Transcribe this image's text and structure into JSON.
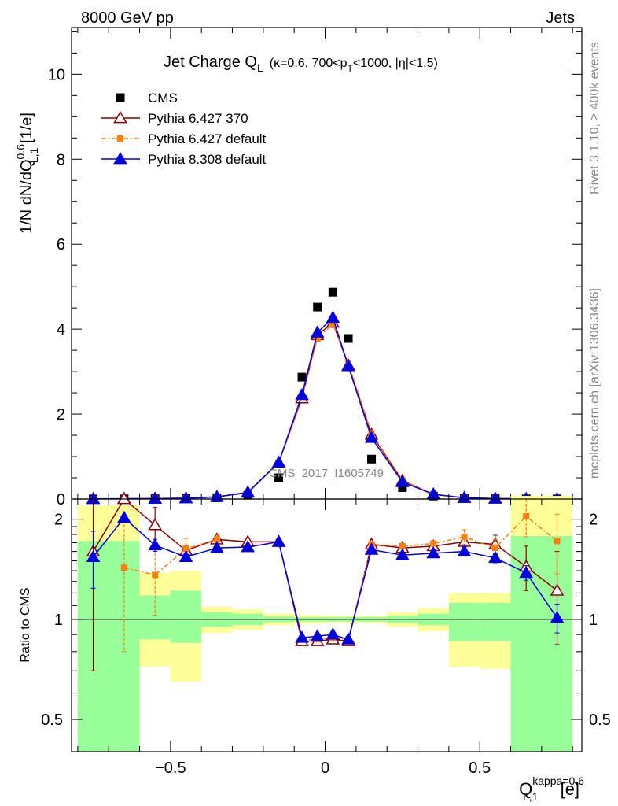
{
  "header": {
    "left": "8000 GeV pp",
    "right": "Jets"
  },
  "side_labels": {
    "rivet": "Rivet 3.1.10, ≥ 400k events",
    "mcplots": "mcplots.cern.ch [arXiv:1306.3436]"
  },
  "watermark": "CMS_2017_I1605749",
  "chart_data": [
    {
      "type": "scatter",
      "panel": "main",
      "title": {
        "main": "Jet Charge Q",
        "sub": "L",
        "detail": "(κ=0.6, 700<p",
        "detail_sub": "T",
        "detail_end": "<1000, |η|<1.5)"
      },
      "ylabel": {
        "a": "1/N dN/dQ",
        "sup": "0.6",
        "sub": "L,1",
        "b": " [1/e]"
      },
      "xlim": [
        -0.82,
        0.83
      ],
      "ylim": [
        0,
        11.1
      ],
      "yticks": [
        0,
        2,
        4,
        6,
        8,
        10
      ],
      "ytick_labels": [
        "0",
        "2",
        "4",
        "6",
        "8",
        "10"
      ],
      "legend": {
        "placement": "top-left"
      },
      "x": [
        -0.75,
        -0.65,
        -0.55,
        -0.45,
        -0.35,
        -0.25,
        -0.15,
        -0.075,
        -0.025,
        0.025,
        0.075,
        0.15,
        0.25,
        0.35,
        0.45,
        0.55,
        0.65,
        0.75
      ],
      "series": [
        {
          "name": "CMS",
          "color": "#000000",
          "marker": "square",
          "values": [
            0.002,
            0.004,
            0.006,
            0.012,
            0.03,
            0.09,
            0.5,
            2.87,
            4.52,
            4.87,
            3.78,
            0.94,
            0.27,
            0.07,
            0.017,
            0.007,
            0.003,
            0.002
          ]
        },
        {
          "name": "Pythia 6.427 370",
          "color": "#8b0000",
          "marker": "open-triangle",
          "dash": "",
          "values": [
            0.003,
            0.008,
            0.012,
            0.02,
            0.05,
            0.16,
            0.86,
            2.37,
            3.86,
            4.15,
            3.15,
            1.52,
            0.43,
            0.11,
            0.03,
            0.012,
            0.005,
            0.002
          ]
        },
        {
          "name": "Pythia 6.427 default",
          "color": "#ff7f0e",
          "marker": "filled-square",
          "dash": "6,3,2,3",
          "values": [
            0.003,
            0.006,
            0.011,
            0.02,
            0.05,
            0.15,
            0.85,
            2.4,
            3.78,
            4.12,
            3.2,
            1.55,
            0.44,
            0.12,
            0.03,
            0.012,
            0.006,
            0.003
          ]
        },
        {
          "name": "Pythia 8.308 default",
          "color": "#0000dd",
          "marker": "filled-triangle",
          "dash": "",
          "values": [
            0.003,
            0.008,
            0.01,
            0.018,
            0.05,
            0.15,
            0.86,
            2.45,
            3.92,
            4.27,
            3.13,
            1.44,
            0.4,
            0.11,
            0.027,
            0.011,
            0.004,
            0.002
          ]
        }
      ]
    },
    {
      "type": "scatter",
      "panel": "ratio",
      "ylabel": "Ratio to CMS",
      "yscale": "log",
      "ylim": [
        0.4,
        2.3
      ],
      "yticks": [
        0.5,
        1,
        2
      ],
      "ytick_labels": [
        "0.5",
        "1",
        "2"
      ],
      "xlabel": {
        "a": "Q",
        "sup": "kappa=0.6",
        "sub": "L,1",
        "b": " [e]"
      },
      "xlim": [
        -0.82,
        0.83
      ],
      "xticks": [
        -0.5,
        0,
        0.5
      ],
      "xtick_labels": [
        "−0.5",
        "0",
        "0.5"
      ],
      "reference_line": 1,
      "bands": [
        {
          "x0": -0.8,
          "x1": -0.6,
          "yellow": [
            0.4,
            2.2
          ],
          "green": [
            0.4,
            1.72
          ]
        },
        {
          "x0": -0.6,
          "x1": -0.5,
          "yellow": [
            0.72,
            1.38
          ],
          "green": [
            0.87,
            1.18
          ]
        },
        {
          "x0": -0.5,
          "x1": -0.4,
          "yellow": [
            0.65,
            1.4
          ],
          "green": [
            0.85,
            1.22
          ]
        },
        {
          "x0": -0.4,
          "x1": -0.3,
          "yellow": [
            0.91,
            1.09
          ],
          "green": [
            0.95,
            1.05
          ]
        },
        {
          "x0": -0.3,
          "x1": -0.2,
          "yellow": [
            0.93,
            1.07
          ],
          "green": [
            0.96,
            1.04
          ]
        },
        {
          "x0": -0.2,
          "x1": -0.1,
          "yellow": [
            0.96,
            1.04
          ],
          "green": [
            0.98,
            1.02
          ]
        },
        {
          "x0": -0.1,
          "x1": -0.05,
          "yellow": [
            0.97,
            1.03
          ],
          "green": [
            0.985,
            1.015
          ]
        },
        {
          "x0": -0.05,
          "x1": 0.0,
          "yellow": [
            0.97,
            1.03
          ],
          "green": [
            0.985,
            1.015
          ]
        },
        {
          "x0": 0.0,
          "x1": 0.05,
          "yellow": [
            0.975,
            1.025
          ],
          "green": [
            0.985,
            1.015
          ]
        },
        {
          "x0": 0.05,
          "x1": 0.1,
          "yellow": [
            0.975,
            1.025
          ],
          "green": [
            0.985,
            1.015
          ]
        },
        {
          "x0": 0.1,
          "x1": 0.2,
          "yellow": [
            0.975,
            1.025
          ],
          "green": [
            0.985,
            1.015
          ]
        },
        {
          "x0": 0.2,
          "x1": 0.3,
          "yellow": [
            0.95,
            1.05
          ],
          "green": [
            0.975,
            1.025
          ]
        },
        {
          "x0": 0.3,
          "x1": 0.4,
          "yellow": [
            0.92,
            1.08
          ],
          "green": [
            0.96,
            1.04
          ]
        },
        {
          "x0": 0.4,
          "x1": 0.5,
          "yellow": [
            0.72,
            1.2
          ],
          "green": [
            0.86,
            1.12
          ]
        },
        {
          "x0": 0.5,
          "x1": 0.6,
          "yellow": [
            0.71,
            1.2
          ],
          "green": [
            0.86,
            1.12
          ]
        },
        {
          "x0": 0.6,
          "x1": 0.8,
          "yellow": [
            0.4,
            2.35
          ],
          "green": [
            0.4,
            1.78
          ]
        }
      ],
      "x": [
        -0.75,
        -0.65,
        -0.55,
        -0.45,
        -0.35,
        -0.25,
        -0.15,
        -0.075,
        -0.025,
        0.025,
        0.075,
        0.15,
        0.25,
        0.35,
        0.45,
        0.55,
        0.65,
        0.75
      ],
      "series": [
        {
          "name": "Pythia 6.427 370",
          "color": "#8b0000",
          "marker": "open-triangle",
          "values": [
            1.6,
            2.35,
            1.92,
            1.61,
            1.74,
            1.71,
            1.71,
            0.86,
            0.86,
            0.87,
            0.86,
            1.68,
            1.64,
            1.66,
            1.71,
            1.68,
            1.44,
            1.22
          ],
          "err_low": [
            0.9,
            0.05,
            0.25,
            0.05,
            0.04,
            0.03,
            0.02,
            0.01,
            0.01,
            0.01,
            0.01,
            0.02,
            0.02,
            0.03,
            0.08,
            0.11,
            0.22,
            0.38
          ],
          "err_high": [
            0.9,
            0.05,
            0.25,
            0.05,
            0.04,
            0.03,
            0.02,
            0.01,
            0.01,
            0.01,
            0.01,
            0.02,
            0.02,
            0.03,
            0.08,
            0.11,
            0.22,
            0.38
          ]
        },
        {
          "name": "Pythia 6.427 default",
          "color": "#ff7f0e",
          "marker": "filled-square",
          "values": [
            0.0,
            1.43,
            1.36,
            1.63,
            1.74,
            0.0,
            0.0,
            0.87,
            0.87,
            0.88,
            0.87,
            1.68,
            1.66,
            1.69,
            1.77,
            1.64,
            2.04,
            1.72
          ],
          "err_low": [
            0.0,
            0.63,
            0.33,
            0.12,
            0.05,
            0.0,
            0.0,
            0.01,
            0.01,
            0.01,
            0.01,
            0.02,
            0.02,
            0.03,
            0.09,
            0.1,
            0.27,
            0.35
          ],
          "err_high": [
            0.0,
            0.63,
            0.33,
            0.12,
            0.05,
            0.0,
            0.0,
            0.01,
            0.01,
            0.01,
            0.01,
            0.02,
            0.02,
            0.03,
            0.09,
            0.1,
            0.27,
            0.35
          ]
        },
        {
          "name": "Pythia 8.308 default",
          "color": "#0000dd",
          "marker": "filled-triangle",
          "values": [
            1.54,
            2.02,
            1.67,
            1.54,
            1.64,
            1.65,
            1.71,
            0.88,
            0.89,
            0.9,
            0.87,
            1.62,
            1.56,
            1.58,
            1.6,
            1.53,
            1.38,
            1.01
          ],
          "err_low": [
            0.3,
            0.0,
            0.07,
            0.04,
            0.03,
            0.02,
            0.02,
            0.01,
            0.01,
            0.01,
            0.01,
            0.02,
            0.02,
            0.03,
            0.05,
            0.05,
            0.07,
            0.1
          ],
          "err_high": [
            0.3,
            0.0,
            0.07,
            0.04,
            0.03,
            0.02,
            0.02,
            0.01,
            0.01,
            0.01,
            0.01,
            0.02,
            0.02,
            0.03,
            0.05,
            0.05,
            0.07,
            0.1
          ]
        }
      ]
    }
  ]
}
